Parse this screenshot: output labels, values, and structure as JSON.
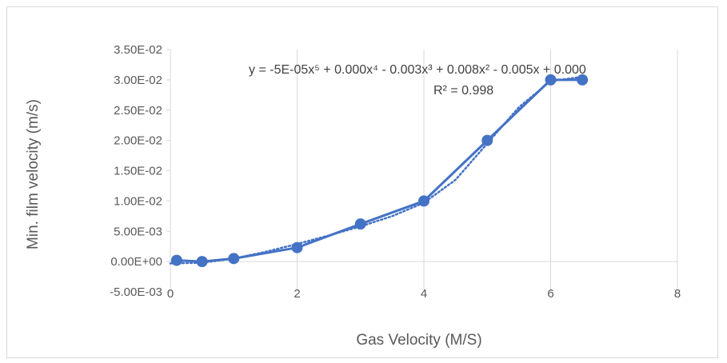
{
  "chart_data": {
    "type": "scatter",
    "title": "",
    "xlabel": "Gas Velocity (M/S)",
    "ylabel": "Min. film velocity (m/s)",
    "xlim": [
      0,
      8
    ],
    "ylim": [
      -0.005,
      0.035
    ],
    "x_ticks": [
      "0",
      "2",
      "4",
      "6",
      "8"
    ],
    "y_ticks": [
      "-5.00E-03",
      "0.00E+00",
      "5.00E-03",
      "1.00E-02",
      "1.50E-02",
      "2.00E-02",
      "2.50E-02",
      "3.00E-02",
      "3.50E-02"
    ],
    "grid": "vertical",
    "legend": "none",
    "series": [
      {
        "style": "solid line with circle markers",
        "color": "#4472c4",
        "x": [
          0.1,
          0.5,
          1,
          2,
          3,
          4,
          5,
          6,
          6.5
        ],
        "y": [
          0.0002,
          0.0,
          0.0005,
          0.0023,
          0.0062,
          0.01,
          0.02,
          0.03,
          0.03
        ]
      }
    ],
    "trendline": {
      "kind": "polynomial order 5",
      "style": "dotted",
      "color": "#4472c4",
      "x": [
        0,
        0.5,
        1,
        1.5,
        2,
        2.5,
        3,
        3.5,
        4,
        4.5,
        5,
        5.5,
        6,
        6.5
      ],
      "y": [
        -0.0003,
        -0.0002,
        0.0005,
        0.0016,
        0.0029,
        0.0043,
        0.0058,
        0.0075,
        0.0097,
        0.0135,
        0.0195,
        0.0255,
        0.0298,
        0.0305
      ]
    },
    "annotations": {
      "equation": "y = -5E-05x⁵ + 0.000x⁴ - 0.003x³ + 0.008x² - 0.005x + 0.000",
      "r_squared": "R² = 0.998"
    }
  }
}
